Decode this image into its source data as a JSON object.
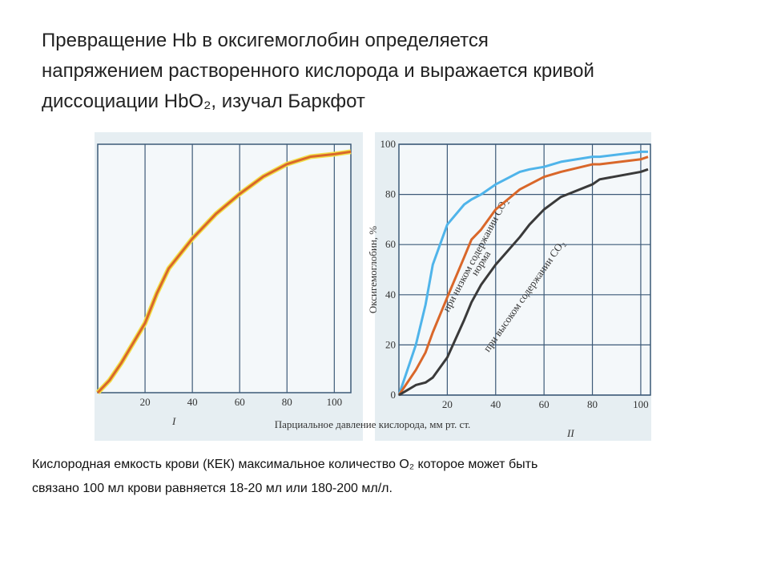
{
  "slide": {
    "title_lines": [
      "Превращение Hb в оксигемоглобин определяется",
      "напряжением растворенного кислорода и выражается кривой",
      "диссоциации HbO₂, изучал Баркфот"
    ],
    "caption_lines": [
      "Кислородная емкость крови (КЕК) максимальное количество О₂ которое может быть",
      "связано 100 мл крови равняется 18-20 мл или  180-200 мл/л."
    ],
    "xlabel": "Парциальное давление кислорода, мм рт. ст."
  },
  "chart_data": [
    {
      "type": "line",
      "label": "I",
      "x": [
        0,
        5,
        10,
        15,
        20,
        25,
        30,
        40,
        50,
        60,
        70,
        80,
        90,
        100,
        107
      ],
      "series": [
        {
          "color": "#d9672a",
          "values": [
            0,
            5,
            12,
            20,
            28,
            40,
            50,
            62,
            72,
            80,
            87,
            92,
            95,
            96,
            97
          ]
        }
      ],
      "xlim": [
        0,
        107
      ],
      "ylim": [
        0,
        100
      ],
      "xticks": [
        20,
        40,
        60,
        80,
        100
      ],
      "grid": true
    },
    {
      "type": "line",
      "label": "II",
      "ylabel": "Оксигемоглобин, %",
      "x": [
        0,
        7,
        11,
        14,
        20,
        27,
        30,
        34,
        40,
        50,
        54,
        60,
        67,
        80,
        83,
        100,
        103
      ],
      "series": [
        {
          "name": "при низком содержании CO₂",
          "color": "#4fb4ea",
          "values": [
            0,
            20,
            36,
            52,
            68,
            76,
            78,
            80,
            84,
            89,
            90,
            91,
            93,
            95,
            95,
            97,
            97
          ]
        },
        {
          "name": "норма",
          "color": "#d9672a",
          "values": [
            0,
            10,
            17,
            25,
            39,
            55,
            62,
            66,
            74,
            82,
            84,
            87,
            89,
            92,
            92,
            94,
            95
          ]
        },
        {
          "name": "при высоком содержании CO₂",
          "color": "#3a3a3a",
          "values": [
            0,
            4,
            5,
            7,
            15,
            30,
            37,
            44,
            52,
            63,
            68,
            74,
            79,
            84,
            86,
            89,
            90
          ]
        }
      ],
      "xlim": [
        0,
        104
      ],
      "ylim": [
        0,
        100
      ],
      "xticks": [
        20,
        40,
        60,
        80,
        100
      ],
      "yticks": [
        0,
        20,
        40,
        60,
        80,
        100
      ],
      "grid": true
    }
  ]
}
